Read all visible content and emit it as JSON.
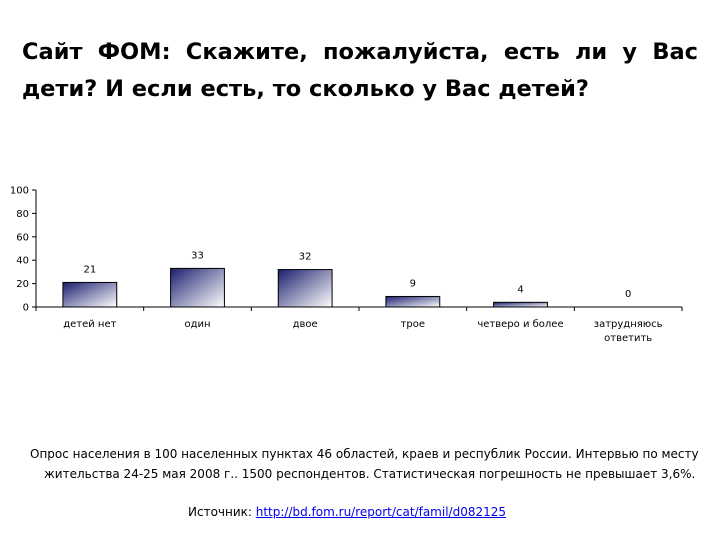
{
  "slide": {
    "title": "Сайт ФОМ: Скажите, пожалуйста, есть ли у Вас дети? И если есть, то сколько у Вас детей?",
    "footnote": "Опрос населения в 100 населенных пунктах 46 областей, краев и республик России. Интервью по месту жительства 24-25 мая 2008 г.. 1500 респондентов. Статистическая погрешность не превышает 3,6%.",
    "source_label": "Источник: ",
    "source_link": "http://bd.fom.ru/report/cat/famil/d082125"
  },
  "chart_data": {
    "type": "bar",
    "categories": [
      "детей нет",
      "один",
      "двое",
      "трое",
      "четверо и более",
      "затрудняюсь ответить"
    ],
    "values": [
      21,
      33,
      32,
      9,
      4,
      0
    ],
    "ylim": [
      0,
      100
    ],
    "yticks": [
      0,
      20,
      40,
      60,
      80,
      100
    ],
    "grid": false,
    "legend": "none",
    "bar_gradient": [
      "#1a1f6e",
      "#ffffff"
    ],
    "data_labels": true
  }
}
